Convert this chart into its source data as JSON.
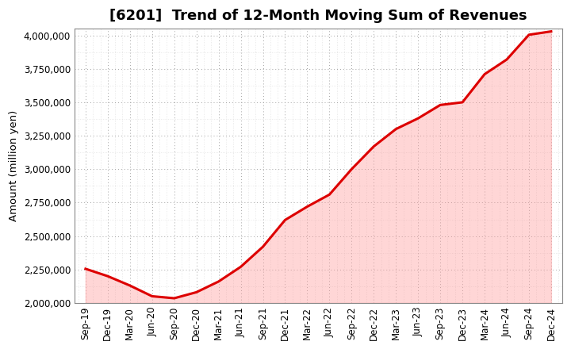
{
  "title": "[6201]  Trend of 12-Month Moving Sum of Revenues",
  "ylabel": "Amount (million yen)",
  "line_color": "#dd0000",
  "fill_color": "#ff9999",
  "fill_alpha": 0.4,
  "background_color": "#ffffff",
  "plot_bg_color": "#ffffff",
  "grid_color": "#999999",
  "ylim": [
    2000000,
    4050000
  ],
  "yticks": [
    2000000,
    2250000,
    2500000,
    2750000,
    3000000,
    3250000,
    3500000,
    3750000,
    4000000
  ],
  "x_labels": [
    "Sep-19",
    "Dec-19",
    "Mar-20",
    "Jun-20",
    "Sep-20",
    "Dec-20",
    "Mar-21",
    "Jun-21",
    "Sep-21",
    "Dec-21",
    "Mar-22",
    "Jun-22",
    "Sep-22",
    "Dec-22",
    "Mar-23",
    "Jun-23",
    "Sep-23",
    "Dec-23",
    "Mar-24",
    "Jun-24",
    "Sep-24",
    "Dec-24"
  ],
  "values": [
    2255000,
    2200000,
    2130000,
    2050000,
    2035000,
    2080000,
    2160000,
    2270000,
    2420000,
    2620000,
    2720000,
    2810000,
    3000000,
    3170000,
    3300000,
    3380000,
    3480000,
    3500000,
    3710000,
    3820000,
    4005000,
    4030000
  ],
  "title_fontsize": 13,
  "tick_fontsize": 8.5,
  "ylabel_fontsize": 9.5,
  "line_width": 2.2
}
